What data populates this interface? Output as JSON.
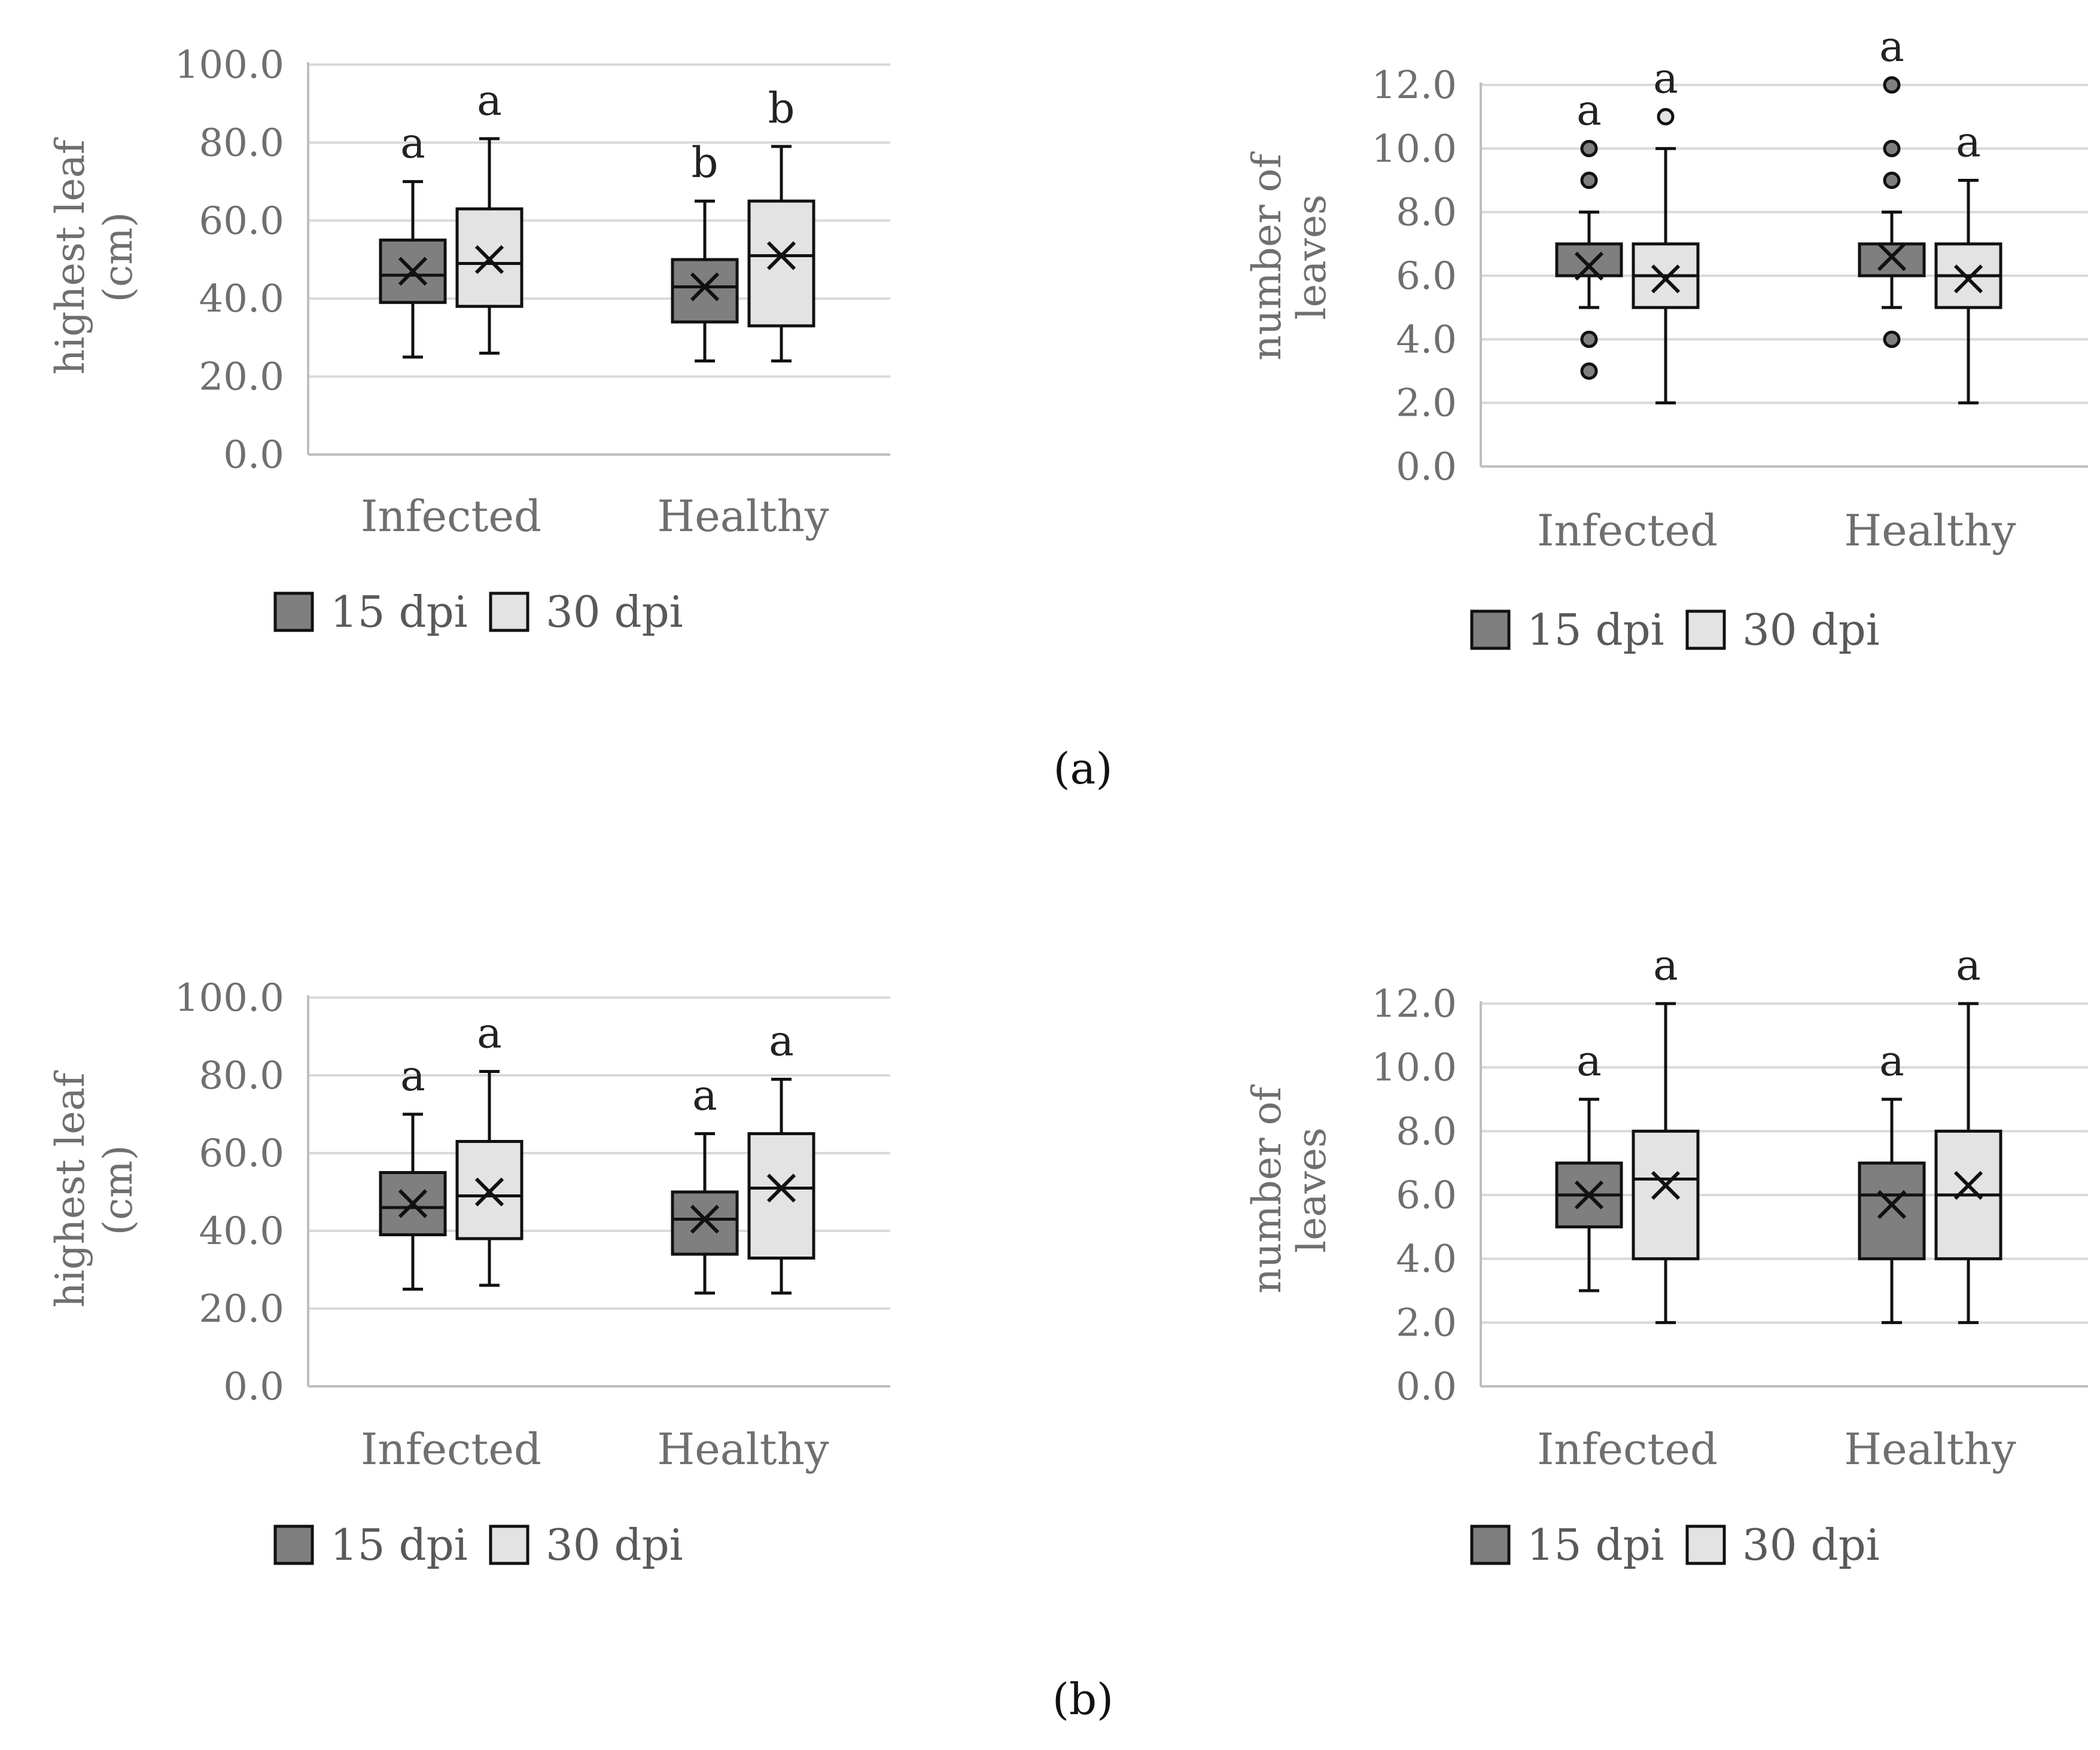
{
  "legend": {
    "series1": "15 dpi",
    "series2": "30 dpi"
  },
  "colors": {
    "series1": "#7f7f7f",
    "series2": "#e3e3e3",
    "grid": "#d9d9d9",
    "axis": "#bfbfbf",
    "line": "#111111"
  },
  "captions": [
    "(a)",
    "(b)"
  ],
  "chart_data": [
    {
      "id": "a-left",
      "panel": "(a)",
      "type": "box",
      "categories": [
        "Infected",
        "Healthy"
      ],
      "ylabel_lines": [
        "highest leaf",
        "(cm)"
      ],
      "ylim": [
        0,
        100
      ],
      "yticks": [
        "0.0",
        "20.0",
        "40.0",
        "60.0",
        "80.0",
        "100.0"
      ],
      "ystep": 20,
      "series": [
        {
          "name": "15 dpi",
          "boxes": [
            {
              "category": "Infected",
              "min": 25,
              "q1": 39,
              "median": 46,
              "mean": 47,
              "q3": 55,
              "max": 70,
              "outliers": [],
              "label": "a"
            },
            {
              "category": "Healthy",
              "min": 24,
              "q1": 34,
              "median": 43,
              "mean": 43,
              "q3": 50,
              "max": 65,
              "outliers": [],
              "label": "b"
            }
          ]
        },
        {
          "name": "30 dpi",
          "boxes": [
            {
              "category": "Infected",
              "min": 26,
              "q1": 38,
              "median": 49,
              "mean": 50,
              "q3": 63,
              "max": 81,
              "outliers": [],
              "label": "a"
            },
            {
              "category": "Healthy",
              "min": 24,
              "q1": 33,
              "median": 51,
              "mean": 51,
              "q3": 65,
              "max": 79,
              "outliers": [],
              "label": "b"
            }
          ]
        }
      ]
    },
    {
      "id": "a-right",
      "panel": "(a)",
      "type": "box",
      "categories": [
        "Infected",
        "Healthy"
      ],
      "ylabel_lines": [
        "number of",
        "leaves"
      ],
      "ylim": [
        0,
        12
      ],
      "yticks": [
        "0.0",
        "2.0",
        "4.0",
        "6.0",
        "8.0",
        "10.0",
        "12.0"
      ],
      "ystep": 2,
      "series": [
        {
          "name": "15 dpi",
          "boxes": [
            {
              "category": "Infected",
              "min": 5,
              "q1": 6,
              "median": 6,
              "mean": 6.3,
              "q3": 7,
              "max": 8,
              "outliers": [
                10,
                9,
                4,
                3
              ],
              "label": "a"
            },
            {
              "category": "Healthy",
              "min": 5,
              "q1": 6,
              "median": 6,
              "mean": 6.6,
              "q3": 7,
              "max": 8,
              "outliers": [
                12,
                10,
                9,
                4
              ],
              "label": "a"
            }
          ]
        },
        {
          "name": "30 dpi",
          "boxes": [
            {
              "category": "Infected",
              "min": 2,
              "q1": 5,
              "median": 6,
              "mean": 5.9,
              "q3": 7,
              "max": 10,
              "outliers": [
                11
              ],
              "label": "a"
            },
            {
              "category": "Healthy",
              "min": 2,
              "q1": 5,
              "median": 6,
              "mean": 5.9,
              "q3": 7,
              "max": 9,
              "outliers": [],
              "label": "a"
            }
          ]
        }
      ]
    },
    {
      "id": "b-left",
      "panel": "(b)",
      "type": "box",
      "categories": [
        "Infected",
        "Healthy"
      ],
      "ylabel_lines": [
        "highest leaf",
        "(cm)"
      ],
      "ylim": [
        0,
        100
      ],
      "yticks": [
        "0.0",
        "20.0",
        "40.0",
        "60.0",
        "80.0",
        "100.0"
      ],
      "ystep": 20,
      "series": [
        {
          "name": "15 dpi",
          "boxes": [
            {
              "category": "Infected",
              "min": 25,
              "q1": 39,
              "median": 46,
              "mean": 47,
              "q3": 55,
              "max": 70,
              "outliers": [],
              "label": "a"
            },
            {
              "category": "Healthy",
              "min": 24,
              "q1": 34,
              "median": 43,
              "mean": 43,
              "q3": 50,
              "max": 65,
              "outliers": [],
              "label": "a"
            }
          ]
        },
        {
          "name": "30 dpi",
          "boxes": [
            {
              "category": "Infected",
              "min": 26,
              "q1": 38,
              "median": 49,
              "mean": 50,
              "q3": 63,
              "max": 81,
              "outliers": [],
              "label": "a"
            },
            {
              "category": "Healthy",
              "min": 24,
              "q1": 33,
              "median": 51,
              "mean": 51,
              "q3": 65,
              "max": 79,
              "outliers": [],
              "label": "a"
            }
          ]
        }
      ]
    },
    {
      "id": "b-right",
      "panel": "(b)",
      "type": "box",
      "categories": [
        "Infected",
        "Healthy"
      ],
      "ylabel_lines": [
        "number of",
        "leaves"
      ],
      "ylim": [
        0,
        12
      ],
      "yticks": [
        "0.0",
        "2.0",
        "4.0",
        "6.0",
        "8.0",
        "10.0",
        "12.0"
      ],
      "ystep": 2,
      "series": [
        {
          "name": "15 dpi",
          "boxes": [
            {
              "category": "Infected",
              "min": 3,
              "q1": 5,
              "median": 6,
              "mean": 6.0,
              "q3": 7,
              "max": 9,
              "outliers": [],
              "label": "a"
            },
            {
              "category": "Healthy",
              "min": 2,
              "q1": 4,
              "median": 6,
              "mean": 5.7,
              "q3": 7,
              "max": 9,
              "outliers": [],
              "label": "a"
            }
          ]
        },
        {
          "name": "30 dpi",
          "boxes": [
            {
              "category": "Infected",
              "min": 2,
              "q1": 4,
              "median": 6.5,
              "mean": 6.3,
              "q3": 8,
              "max": 12,
              "outliers": [],
              "label": "a"
            },
            {
              "category": "Healthy",
              "min": 2,
              "q1": 4,
              "median": 6,
              "mean": 6.3,
              "q3": 8,
              "max": 12,
              "outliers": [],
              "label": "a"
            }
          ]
        }
      ]
    }
  ]
}
